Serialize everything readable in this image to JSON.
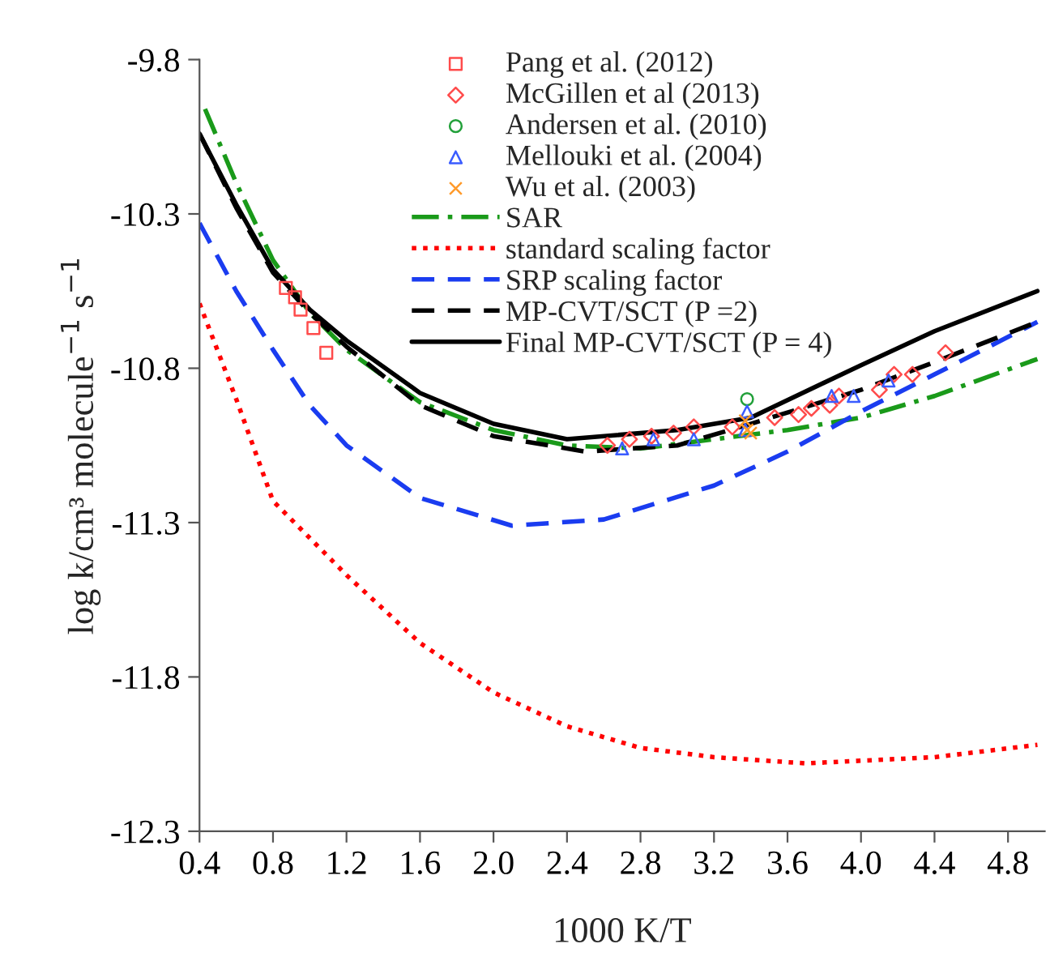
{
  "chart_data": {
    "type": "line",
    "xlabel": "1000 K/T",
    "ylabel": "log k/cm³ molecule$^{−1}$ s$^{−1}$",
    "xlim": [
      0.4,
      5.0
    ],
    "xticks": [
      {
        "value": 0.4,
        "label": "0.4"
      },
      {
        "value": 0.8,
        "label": "0.8"
      },
      {
        "value": 1.2,
        "label": "1.2"
      },
      {
        "value": 1.6,
        "label": "1.6"
      },
      {
        "value": 2.0,
        "label": "2.0"
      },
      {
        "value": 2.4,
        "label": "2.4"
      },
      {
        "value": 2.8,
        "label": "2.8"
      },
      {
        "value": 3.2,
        "label": "3.2"
      },
      {
        "value": 3.6,
        "label": "3.6"
      },
      {
        "value": 4.0,
        "label": "4.0"
      },
      {
        "value": 4.4,
        "label": "4.4"
      },
      {
        "value": 4.8,
        "label": "4.8"
      }
    ],
    "ylim": [
      -12.3,
      -9.8
    ],
    "yticks": [
      -12.3,
      -11.8,
      -11.3,
      -10.8,
      -10.3,
      -9.8
    ],
    "grid": false,
    "legend": "top",
    "series": [
      {
        "name": "Pang et al. (2012)",
        "type": "scatter",
        "marker": "square",
        "color": "#ff4b4b",
        "x": [
          0.87,
          0.92,
          0.95,
          1.02,
          1.09
        ],
        "values": [
          -10.54,
          -10.57,
          -10.61,
          -10.67,
          -10.75
        ]
      },
      {
        "name": "McGillen et al (2013)",
        "type": "scatter",
        "marker": "diamond",
        "color": "#ff4b4b",
        "x": [
          2.62,
          2.74,
          2.86,
          2.98,
          3.09,
          3.3,
          3.37,
          3.53,
          3.66,
          3.73,
          3.83,
          3.88,
          4.1,
          4.18,
          4.28,
          4.46
        ],
        "values": [
          -11.05,
          -11.03,
          -11.02,
          -11.01,
          -10.99,
          -10.99,
          null,
          -10.96,
          -10.95,
          -10.93,
          -10.92,
          -10.89,
          -10.87,
          -10.82,
          -10.82,
          -10.75
        ]
      },
      {
        "name": "Andersen et al. (2010)",
        "type": "scatter",
        "marker": "circle",
        "color": "#22a03a",
        "x": [
          3.38
        ],
        "values": [
          -10.9
        ]
      },
      {
        "name": "Mellouki et al. (2004)",
        "type": "scatter",
        "marker": "triangle",
        "color": "#3a5cff",
        "x": [
          2.7,
          2.87,
          3.09,
          3.37,
          3.38,
          3.84,
          3.96,
          4.15
        ],
        "values": [
          -11.06,
          -11.03,
          -11.03,
          -11.0,
          -10.94,
          -10.89,
          -10.89,
          -10.84
        ]
      },
      {
        "name": "Wu et al. (2003)",
        "type": "scatter",
        "marker": "cross",
        "color": "#ff9a2a",
        "x": [
          3.37,
          3.38,
          3.4
        ],
        "values": [
          -10.97,
          -11.0,
          -11.01
        ]
      },
      {
        "name": "SAR",
        "type": "line",
        "line_style": "dashdot",
        "color": "#1a9a1a",
        "x": [
          0.43,
          0.6,
          0.8,
          1.0,
          1.2,
          1.6,
          2.0,
          2.4,
          2.8,
          3.2,
          3.6,
          4.0,
          4.4,
          4.96
        ],
        "values": [
          -9.96,
          -10.2,
          -10.45,
          -10.62,
          -10.74,
          -10.91,
          -11.0,
          -11.05,
          -11.06,
          -11.03,
          -11.0,
          -10.96,
          -10.89,
          -10.77
        ]
      },
      {
        "name": "standard scaling factor",
        "type": "line",
        "line_style": "dotted",
        "color": "#ff0000",
        "x": [
          0.4,
          0.6,
          0.8,
          1.2,
          1.6,
          2.0,
          2.4,
          2.8,
          3.2,
          3.7,
          4.4,
          4.96
        ],
        "values": [
          -10.59,
          -10.9,
          -11.23,
          -11.47,
          -11.69,
          -11.85,
          -11.96,
          -12.03,
          -12.06,
          -12.08,
          -12.06,
          -12.02
        ]
      },
      {
        "name": "SRP scaling factor",
        "type": "line",
        "line_style": "dashed",
        "color": "#1a3cf0",
        "x": [
          0.4,
          0.6,
          0.8,
          1.0,
          1.2,
          1.6,
          2.1,
          2.6,
          3.2,
          3.6,
          4.0,
          4.4,
          4.96
        ],
        "values": [
          -10.33,
          -10.55,
          -10.74,
          -10.92,
          -11.05,
          -11.22,
          -11.31,
          -11.29,
          -11.18,
          -11.07,
          -10.94,
          -10.82,
          -10.65
        ]
      },
      {
        "name": "MP-CVT/SCT (P =2)",
        "type": "line",
        "line_style": "dashed",
        "color": "#000000",
        "x": [
          0.4,
          0.6,
          0.8,
          1.0,
          1.2,
          1.6,
          2.0,
          2.5,
          3.0,
          3.4,
          4.0,
          4.4,
          4.96
        ],
        "values": [
          -10.04,
          -10.28,
          -10.49,
          -10.62,
          -10.73,
          -10.92,
          -11.02,
          -11.07,
          -11.05,
          -10.98,
          -10.87,
          -10.78,
          -10.65
        ]
      },
      {
        "name": "Final MP-CVT/SCT (P = 4)",
        "type": "line",
        "line_style": "solid",
        "color": "#000000",
        "x": [
          0.4,
          0.6,
          0.8,
          1.0,
          1.2,
          1.6,
          2.0,
          2.4,
          3.0,
          3.4,
          4.0,
          4.4,
          4.96
        ],
        "values": [
          -10.04,
          -10.27,
          -10.48,
          -10.61,
          -10.71,
          -10.88,
          -10.98,
          -11.03,
          -11.0,
          -10.96,
          -10.79,
          -10.68,
          -10.55
        ]
      }
    ]
  }
}
